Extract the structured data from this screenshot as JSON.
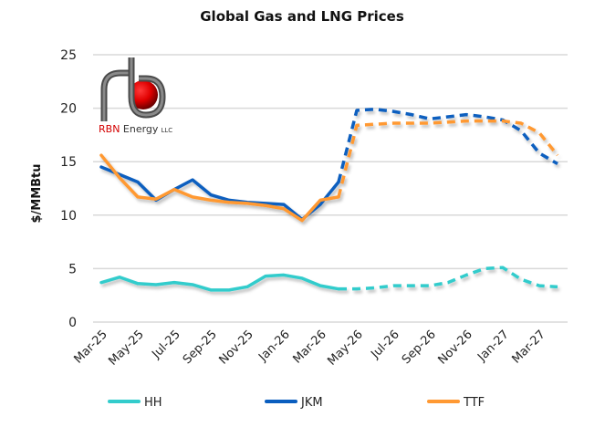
{
  "chart_data": {
    "type": "line",
    "title": "Global Gas and LNG Prices",
    "xlabel": "",
    "ylabel": "$/MMBtu",
    "ylim": [
      0,
      25
    ],
    "yticks": [
      0,
      5,
      10,
      15,
      20,
      25
    ],
    "grid": true,
    "legend_position": "bottom",
    "x": [
      "Mar-25",
      "Apr-25",
      "May-25",
      "Jun-25",
      "Jul-25",
      "Aug-25",
      "Sep-25",
      "Oct-25",
      "Nov-25",
      "Dec-25",
      "Jan-26",
      "Feb-26",
      "Mar-26",
      "Apr-26",
      "May-26",
      "Jun-26",
      "Jul-26",
      "Aug-26",
      "Sep-26",
      "Oct-26",
      "Nov-26",
      "Dec-26",
      "Jan-27",
      "Feb-27",
      "Mar-27",
      "Apr-27"
    ],
    "xtick_labels": [
      "Mar-25",
      "May-25",
      "Jul-25",
      "Sep-25",
      "Nov-25",
      "Jan-26",
      "Mar-26",
      "May-26",
      "Jul-26",
      "Sep-26",
      "Nov-26",
      "Jan-27",
      "Mar-27"
    ],
    "forecast_start_index": 13,
    "series": [
      {
        "name": "HH",
        "color": "#33CCCC",
        "values": [
          3.7,
          4.2,
          3.6,
          3.5,
          3.7,
          3.5,
          3.0,
          3.0,
          3.3,
          4.3,
          4.4,
          4.1,
          3.4,
          3.1,
          3.1,
          3.2,
          3.4,
          3.4,
          3.4,
          3.7,
          4.4,
          5.0,
          5.1,
          4.0,
          3.4,
          3.3
        ]
      },
      {
        "name": "JKM",
        "color": "#0A5EBF",
        "values": [
          14.5,
          13.8,
          13.1,
          11.4,
          12.4,
          13.3,
          11.9,
          11.4,
          11.2,
          11.1,
          11.0,
          9.6,
          11.0,
          13.1,
          19.8,
          19.9,
          19.7,
          19.4,
          19.0,
          19.2,
          19.4,
          19.2,
          18.9,
          17.9,
          15.8,
          14.8
        ]
      },
      {
        "name": "TTF",
        "color": "#FF9933",
        "values": [
          15.6,
          13.5,
          11.7,
          11.5,
          12.4,
          11.7,
          11.4,
          11.2,
          11.1,
          10.9,
          10.6,
          9.5,
          11.4,
          11.7,
          18.4,
          18.5,
          18.6,
          18.6,
          18.6,
          18.7,
          18.8,
          18.8,
          18.8,
          18.6,
          17.7,
          15.6
        ]
      }
    ]
  },
  "logo": {
    "brand_red": "RBN",
    "brand_rest": " Energy",
    "suffix": "LLC"
  }
}
